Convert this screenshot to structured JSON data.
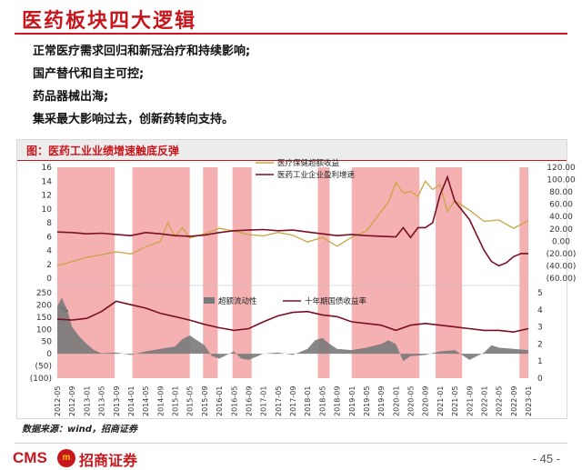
{
  "slide": {
    "title": "医药板块四大逻辑",
    "bullets": [
      "正常医疗需求回归和新冠治疗和持续影响;",
      "国产替代和自主可控;",
      "药品器械出海;",
      "集采最大影响过去，创新药转向支持。"
    ],
    "source_note": "数据来源：wind，招商证券",
    "page_number": "- 45 -",
    "logo_text": "CMS",
    "logo_mark": "m",
    "logo_cn": "招商证券"
  },
  "colors": {
    "brand_red": "#c8161d",
    "band": "#f3a3a5",
    "gold_line": "#c8a544",
    "maroon_line": "#7a1023",
    "area_gray": "#7a7a7a"
  },
  "chart_data": {
    "type": "line",
    "title": "图：医药工业业绩增速触底反弹",
    "x_tick_labels": [
      "2012-05",
      "2012-09",
      "2013-01",
      "2013-05",
      "2013-09",
      "2014-01",
      "2014-05",
      "2014-09",
      "2015-01",
      "2015-05",
      "2015-09",
      "2016-01",
      "2016-05",
      "2016-09",
      "2017-01",
      "2017-05",
      "2017-09",
      "2018-01",
      "2018-05",
      "2018-09",
      "2019-01",
      "2019-05",
      "2019-09",
      "2020-01",
      "2020-05",
      "2020-09",
      "2021-01",
      "2021-05",
      "2021-09",
      "2022-01",
      "2022-05",
      "2022-09",
      "2023-01"
    ],
    "upper_panel": {
      "left_axis": {
        "ticks": [
          "0",
          "2",
          "4",
          "6",
          "8",
          "10",
          "12",
          "14",
          "16"
        ],
        "ylim": [
          0,
          16
        ]
      },
      "right_axis": {
        "ticks": [
          "(60.00)",
          "(40.00)",
          "(20.00)",
          "0.00",
          "20.00",
          "40.00",
          "60.00",
          "80.00",
          "100.00",
          "120.00"
        ],
        "ylim": [
          -60,
          120
        ]
      },
      "series": [
        {
          "name": "医疗保健超额收益",
          "axis": "left",
          "x": [
            0,
            1,
            2,
            3,
            4,
            5,
            6,
            7,
            7.5,
            8,
            8.5,
            9,
            10,
            11,
            12,
            13,
            14,
            15,
            16,
            17,
            18,
            19,
            20,
            21,
            22,
            22.5,
            23,
            23.5,
            24,
            24.5,
            25,
            25.5,
            26,
            26.5,
            27,
            28,
            29,
            30,
            31,
            32
          ],
          "values": [
            1.8,
            2.4,
            3.0,
            3.4,
            3.8,
            3.5,
            4.5,
            5.3,
            8.0,
            6.0,
            7.3,
            5.8,
            6.4,
            7.2,
            6.8,
            6.3,
            6.1,
            6.6,
            6.2,
            5.2,
            5.9,
            4.6,
            5.9,
            6.8,
            9.6,
            11.0,
            13.8,
            12.3,
            12.5,
            11.8,
            14.0,
            12.8,
            13.5,
            9.6,
            11.2,
            9.8,
            8.2,
            8.4,
            7.2,
            8.3
          ]
        },
        {
          "name": "医药工业企业盈利增速",
          "axis": "right",
          "x": [
            0,
            1,
            2,
            3,
            4,
            5,
            6,
            7,
            8,
            9,
            10,
            11,
            12,
            13,
            14,
            15,
            16,
            17,
            18,
            19,
            20,
            21,
            22,
            23,
            23.5,
            24,
            24.5,
            25,
            25.5,
            26,
            26.5,
            27,
            28,
            28.5,
            29,
            29.5,
            30,
            30.5,
            31,
            31.5,
            32
          ],
          "values": [
            15,
            14,
            12,
            13,
            11,
            9,
            14,
            12,
            9,
            8,
            10,
            14,
            17,
            18,
            19,
            17,
            18,
            15,
            12,
            9,
            11,
            9,
            8,
            7,
            22,
            6,
            22,
            22,
            30,
            75,
            104,
            65,
            35,
            10,
            -15,
            -33,
            -40,
            -35,
            -25,
            -20,
            -20
          ]
        }
      ],
      "bands": [
        [
          0,
          3.9
        ],
        [
          5.1,
          9.0
        ],
        [
          9.9,
          10.9
        ],
        [
          11.9,
          13.2
        ],
        [
          17.7,
          18.5
        ],
        [
          20.0,
          24.6
        ],
        [
          25.7,
          27.5
        ],
        [
          31.4,
          32.0
        ]
      ]
    },
    "lower_panel": {
      "left_axis": {
        "ticks": [
          "(100)",
          "(50)",
          "0",
          "50",
          "100",
          "150",
          "200",
          "250"
        ],
        "ylim": [
          -100,
          250
        ]
      },
      "right_axis": {
        "ticks": [
          "0",
          "1",
          "2",
          "3",
          "4",
          "5"
        ],
        "ylim": [
          0,
          5
        ]
      },
      "corner_label": "%",
      "series": [
        {
          "name": "超额流动性",
          "type": "area",
          "axis": "left",
          "x": [
            0,
            0.3,
            0.7,
            1,
            1.5,
            2,
            2.5,
            3,
            4,
            5,
            6,
            7,
            8,
            8.5,
            9,
            10,
            10.5,
            11,
            12,
            12.5,
            13,
            14,
            15,
            16,
            17,
            17.5,
            18,
            18.5,
            19,
            20,
            21,
            22,
            22.5,
            23,
            23.5,
            24,
            25,
            26,
            27,
            28,
            29,
            29.5,
            30,
            31,
            32
          ],
          "values": [
            195,
            230,
            175,
            110,
            70,
            40,
            15,
            2,
            5,
            -5,
            10,
            20,
            30,
            60,
            75,
            35,
            -10,
            -20,
            10,
            -20,
            -25,
            0,
            5,
            -5,
            20,
            55,
            65,
            40,
            20,
            15,
            25,
            40,
            55,
            40,
            -30,
            -10,
            -5,
            10,
            15,
            -25,
            5,
            35,
            25,
            20,
            15
          ]
        },
        {
          "name": "十年期国债收益率",
          "type": "line",
          "axis": "right",
          "x": [
            0,
            1,
            2,
            3,
            4,
            5,
            6,
            7,
            8,
            9,
            10,
            11,
            12,
            13,
            14,
            15,
            16,
            17,
            18,
            19,
            20,
            21,
            22,
            23,
            24,
            25,
            26,
            27,
            28,
            29,
            30,
            31,
            32
          ],
          "values": [
            3.45,
            3.4,
            3.5,
            3.9,
            4.5,
            4.3,
            4.1,
            3.8,
            3.6,
            3.4,
            3.15,
            2.95,
            2.8,
            2.9,
            3.3,
            3.65,
            3.85,
            3.9,
            3.7,
            3.6,
            3.3,
            3.2,
            3.1,
            2.8,
            3.1,
            3.2,
            3.1,
            3.0,
            2.9,
            2.8,
            2.8,
            2.7,
            2.9
          ]
        }
      ]
    }
  }
}
